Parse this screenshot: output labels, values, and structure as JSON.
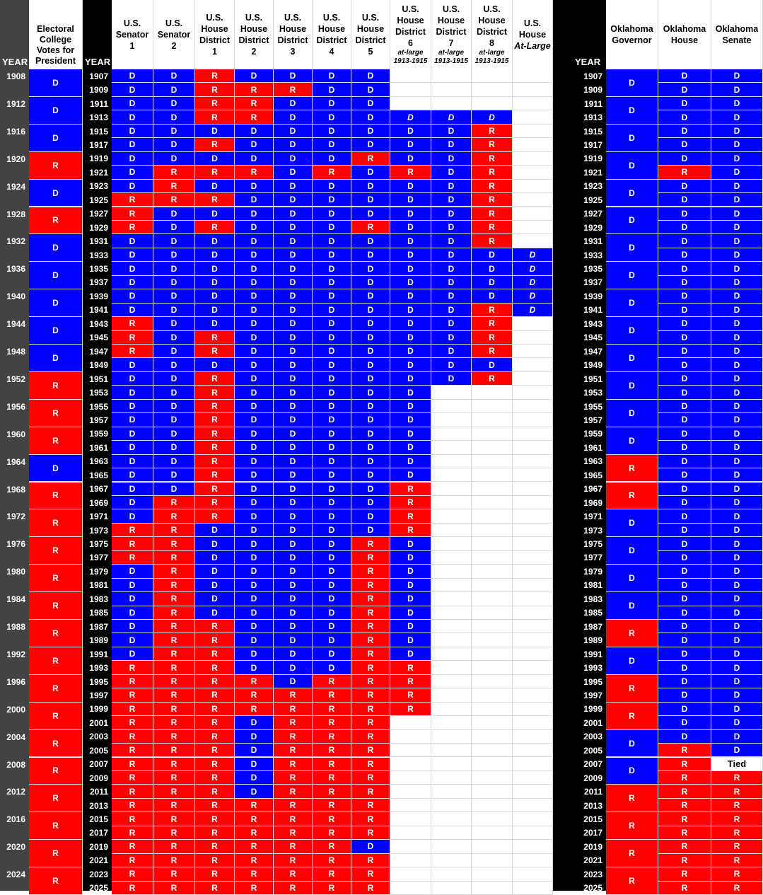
{
  "headers": {
    "year": "YEAR",
    "electoral": [
      "Electoral",
      "College",
      "Votes for",
      "President"
    ],
    "senator1": [
      "U.S.",
      "Senator",
      "1"
    ],
    "senator2": [
      "U.S.",
      "Senator",
      "2"
    ],
    "house1": [
      "U.S.",
      "House",
      "District",
      "1"
    ],
    "house2": [
      "U.S.",
      "House",
      "District",
      "2"
    ],
    "house3": [
      "U.S.",
      "House",
      "District",
      "3"
    ],
    "house4": [
      "U.S.",
      "House",
      "District",
      "4"
    ],
    "house5": [
      "U.S.",
      "House",
      "District",
      "5"
    ],
    "house6": [
      "U.S.",
      "House",
      "District",
      "6"
    ],
    "house7": [
      "U.S.",
      "House",
      "District",
      "7"
    ],
    "house8": [
      "U.S.",
      "House",
      "District",
      "8"
    ],
    "house_note": [
      "at-large",
      "1913-1915"
    ],
    "at_large": [
      "U.S.",
      "House",
      "At-Large"
    ],
    "governor": [
      "Oklahoma",
      "Governor"
    ],
    "ok_house": [
      "Oklahoma",
      "House"
    ],
    "ok_senate": [
      "Oklahoma",
      "Senate"
    ]
  },
  "pres_years": [
    "1908",
    "1912",
    "1916",
    "1920",
    "1924",
    "1928",
    "1932",
    "1936",
    "1940",
    "1944",
    "1948",
    "1952",
    "1956",
    "1960",
    "1964",
    "1968",
    "1972",
    "1976",
    "1980",
    "1984",
    "1988",
    "1992",
    "1996",
    "2000",
    "2004",
    "2008",
    "2012",
    "2016",
    "2020",
    "2024"
  ],
  "electoral": [
    "D",
    "D",
    "D",
    "R",
    "D",
    "R",
    "D",
    "D",
    "D",
    "D",
    "D",
    "R",
    "R",
    "R",
    "D",
    "R",
    "R",
    "R",
    "R",
    "R",
    "R",
    "R",
    "R",
    "R",
    "R",
    "R",
    "R",
    "R",
    "R",
    "R"
  ],
  "governor": [
    "D",
    "D",
    "D",
    "D",
    "D",
    "D",
    "D",
    "D",
    "D",
    "D",
    "D",
    "D",
    "D",
    "D",
    "R",
    "R",
    "D",
    "D",
    "D",
    "D",
    "R",
    "D",
    "R",
    "R",
    "D",
    "D",
    "R",
    "R",
    "R",
    "R"
  ],
  "years": [
    "1907",
    "1909",
    "1911",
    "1913",
    "1915",
    "1917",
    "1919",
    "1921",
    "1923",
    "1925",
    "1927",
    "1929",
    "1931",
    "1933",
    "1935",
    "1937",
    "1939",
    "1941",
    "1943",
    "1945",
    "1947",
    "1949",
    "1951",
    "1953",
    "1955",
    "1957",
    "1959",
    "1961",
    "1963",
    "1965",
    "1967",
    "1969",
    "1971",
    "1973",
    "1975",
    "1977",
    "1979",
    "1981",
    "1983",
    "1985",
    "1987",
    "1989",
    "1991",
    "1993",
    "1995",
    "1997",
    "1999",
    "2001",
    "2003",
    "2005",
    "2007",
    "2009",
    "2011",
    "2013",
    "2015",
    "2017",
    "2019",
    "2021",
    "2023",
    "2025"
  ],
  "rows": [
    [
      "D",
      "D",
      "R",
      "D",
      "D",
      "D",
      "D",
      "",
      "",
      "",
      "",
      "D",
      "D"
    ],
    [
      "D",
      "D",
      "R",
      "R",
      "R",
      "D",
      "D",
      "",
      "",
      "",
      "",
      "D",
      "D"
    ],
    [
      "D",
      "D",
      "R",
      "R",
      "D",
      "D",
      "D",
      "",
      "",
      "",
      "",
      "D",
      "D"
    ],
    [
      "D",
      "D",
      "R",
      "R",
      "D",
      "D",
      "D",
      "D*",
      "D*",
      "D*",
      "",
      "D",
      "D"
    ],
    [
      "D",
      "D",
      "D",
      "D",
      "D",
      "D",
      "D",
      "D",
      "D",
      "R",
      "",
      "D",
      "D"
    ],
    [
      "D",
      "D",
      "R",
      "D",
      "D",
      "D",
      "D",
      "D",
      "D",
      "R",
      "",
      "D",
      "D"
    ],
    [
      "D",
      "D",
      "D",
      "D",
      "D",
      "D",
      "R",
      "D",
      "D",
      "R",
      "",
      "D",
      "D"
    ],
    [
      "D",
      "R",
      "R",
      "R",
      "D",
      "R",
      "D",
      "R",
      "D",
      "R",
      "",
      "R",
      "D"
    ],
    [
      "D",
      "R",
      "D",
      "D",
      "D",
      "D",
      "D",
      "D",
      "D",
      "R",
      "",
      "D",
      "D"
    ],
    [
      "R",
      "R",
      "R",
      "D",
      "D",
      "D",
      "D",
      "D",
      "D",
      "R",
      "",
      "D",
      "D"
    ],
    [
      "R",
      "D",
      "D",
      "D",
      "D",
      "D",
      "D",
      "D",
      "D",
      "R",
      "",
      "D",
      "D"
    ],
    [
      "R",
      "D",
      "R",
      "D",
      "D",
      "D",
      "R",
      "D",
      "D",
      "R",
      "",
      "D",
      "D"
    ],
    [
      "D",
      "D",
      "D",
      "D",
      "D",
      "D",
      "D",
      "D",
      "D",
      "R",
      "",
      "D",
      "D"
    ],
    [
      "D",
      "D",
      "D",
      "D",
      "D",
      "D",
      "D",
      "D",
      "D",
      "D",
      "D*",
      "D",
      "D"
    ],
    [
      "D",
      "D",
      "D",
      "D",
      "D",
      "D",
      "D",
      "D",
      "D",
      "D",
      "D*",
      "D",
      "D"
    ],
    [
      "D",
      "D",
      "D",
      "D",
      "D",
      "D",
      "D",
      "D",
      "D",
      "D",
      "D*",
      "D",
      "D"
    ],
    [
      "D",
      "D",
      "D",
      "D",
      "D",
      "D",
      "D",
      "D",
      "D",
      "D",
      "D*",
      "D",
      "D"
    ],
    [
      "D",
      "D",
      "D",
      "D",
      "D",
      "D",
      "D",
      "D",
      "D",
      "R",
      "D*",
      "D",
      "D"
    ],
    [
      "R",
      "D",
      "D",
      "D",
      "D",
      "D",
      "D",
      "D",
      "D",
      "R",
      "",
      "D",
      "D"
    ],
    [
      "R",
      "D",
      "R",
      "D",
      "D",
      "D",
      "D",
      "D",
      "D",
      "R",
      "",
      "D",
      "D"
    ],
    [
      "R",
      "D",
      "R",
      "D",
      "D",
      "D",
      "D",
      "D",
      "D",
      "R",
      "",
      "D",
      "D"
    ],
    [
      "D",
      "D",
      "D",
      "D",
      "D",
      "D",
      "D",
      "D",
      "D",
      "D",
      "",
      "D",
      "D"
    ],
    [
      "D",
      "D",
      "R",
      "D",
      "D",
      "D",
      "D",
      "D",
      "D",
      "R",
      "",
      "D",
      "D"
    ],
    [
      "D",
      "D",
      "R",
      "D",
      "D",
      "D",
      "D",
      "D",
      "",
      "",
      "",
      "D",
      "D"
    ],
    [
      "D",
      "D",
      "R",
      "D",
      "D",
      "D",
      "D",
      "D",
      "",
      "",
      "",
      "D",
      "D"
    ],
    [
      "D",
      "D",
      "R",
      "D",
      "D",
      "D",
      "D",
      "D",
      "",
      "",
      "",
      "D",
      "D"
    ],
    [
      "D",
      "D",
      "R",
      "D",
      "D",
      "D",
      "D",
      "D",
      "",
      "",
      "",
      "D",
      "D"
    ],
    [
      "D",
      "D",
      "R",
      "D",
      "D",
      "D",
      "D",
      "D",
      "",
      "",
      "",
      "D",
      "D"
    ],
    [
      "D",
      "D",
      "R",
      "D",
      "D",
      "D",
      "D",
      "D",
      "",
      "",
      "",
      "D",
      "D"
    ],
    [
      "D",
      "D",
      "R",
      "D",
      "D",
      "D",
      "D",
      "D",
      "",
      "",
      "",
      "D",
      "D"
    ],
    [
      "D",
      "D",
      "R",
      "D",
      "D",
      "D",
      "D",
      "R",
      "",
      "",
      "",
      "D",
      "D"
    ],
    [
      "D",
      "R",
      "R",
      "D",
      "D",
      "D",
      "D",
      "R",
      "",
      "",
      "",
      "D",
      "D"
    ],
    [
      "D",
      "R",
      "R",
      "D",
      "D",
      "D",
      "D",
      "R",
      "",
      "",
      "",
      "D",
      "D"
    ],
    [
      "R",
      "R",
      "D",
      "D",
      "D",
      "D",
      "D",
      "R",
      "",
      "",
      "",
      "D",
      "D"
    ],
    [
      "R",
      "R",
      "D",
      "D",
      "D",
      "D",
      "R",
      "D",
      "",
      "",
      "",
      "D",
      "D"
    ],
    [
      "R",
      "R",
      "D",
      "D",
      "D",
      "D",
      "R",
      "D",
      "",
      "",
      "",
      "D",
      "D"
    ],
    [
      "D",
      "R",
      "D",
      "D",
      "D",
      "D",
      "R",
      "D",
      "",
      "",
      "",
      "D",
      "D"
    ],
    [
      "D",
      "R",
      "D",
      "D",
      "D",
      "D",
      "R",
      "D",
      "",
      "",
      "",
      "D",
      "D"
    ],
    [
      "D",
      "R",
      "D",
      "D",
      "D",
      "D",
      "R",
      "D",
      "",
      "",
      "",
      "D",
      "D"
    ],
    [
      "D",
      "R",
      "D",
      "D",
      "D",
      "D",
      "R",
      "D",
      "",
      "",
      "",
      "D",
      "D"
    ],
    [
      "D",
      "R",
      "R",
      "D",
      "D",
      "D",
      "R",
      "D",
      "",
      "",
      "",
      "D",
      "D"
    ],
    [
      "D",
      "R",
      "R",
      "D",
      "D",
      "D",
      "R",
      "D",
      "",
      "",
      "",
      "D",
      "D"
    ],
    [
      "D",
      "R",
      "R",
      "D",
      "D",
      "D",
      "R",
      "D",
      "",
      "",
      "",
      "D",
      "D"
    ],
    [
      "R",
      "R",
      "R",
      "D",
      "D",
      "D",
      "R",
      "R",
      "",
      "",
      "",
      "D",
      "D"
    ],
    [
      "R",
      "R",
      "R",
      "R",
      "D",
      "R",
      "R",
      "R",
      "",
      "",
      "",
      "D",
      "D"
    ],
    [
      "R",
      "R",
      "R",
      "R",
      "R",
      "R",
      "R",
      "R",
      "",
      "",
      "",
      "D",
      "D"
    ],
    [
      "R",
      "R",
      "R",
      "R",
      "R",
      "R",
      "R",
      "R",
      "",
      "",
      "",
      "D",
      "D"
    ],
    [
      "R",
      "R",
      "R",
      "D",
      "R",
      "R",
      "R",
      "",
      "",
      "",
      "",
      "D",
      "D"
    ],
    [
      "R",
      "R",
      "R",
      "D",
      "R",
      "R",
      "R",
      "",
      "",
      "",
      "",
      "D",
      "D"
    ],
    [
      "R",
      "R",
      "R",
      "D",
      "R",
      "R",
      "R",
      "",
      "",
      "",
      "",
      "R",
      "D"
    ],
    [
      "R",
      "R",
      "R",
      "D",
      "R",
      "R",
      "R",
      "",
      "",
      "",
      "",
      "R",
      "Tied"
    ],
    [
      "R",
      "R",
      "R",
      "D",
      "R",
      "R",
      "R",
      "",
      "",
      "",
      "",
      "R",
      "R"
    ],
    [
      "R",
      "R",
      "R",
      "D",
      "R",
      "R",
      "R",
      "",
      "",
      "",
      "",
      "R",
      "R"
    ],
    [
      "R",
      "R",
      "R",
      "R",
      "R",
      "R",
      "R",
      "",
      "",
      "",
      "",
      "R",
      "R"
    ],
    [
      "R",
      "R",
      "R",
      "R",
      "R",
      "R",
      "R",
      "",
      "",
      "",
      "",
      "R",
      "R"
    ],
    [
      "R",
      "R",
      "R",
      "R",
      "R",
      "R",
      "R",
      "",
      "",
      "",
      "",
      "R",
      "R"
    ],
    [
      "R",
      "R",
      "R",
      "R",
      "R",
      "R",
      "D",
      "",
      "",
      "",
      "",
      "R",
      "R"
    ],
    [
      "R",
      "R",
      "R",
      "R",
      "R",
      "R",
      "R",
      "",
      "",
      "",
      "",
      "R",
      "R"
    ],
    [
      "R",
      "R",
      "R",
      "R",
      "R",
      "R",
      "R",
      "",
      "",
      "",
      "",
      "R",
      "R"
    ],
    [
      "R",
      "R",
      "R",
      "R",
      "R",
      "R",
      "R",
      "",
      "",
      "",
      "",
      "R",
      "R"
    ]
  ]
}
